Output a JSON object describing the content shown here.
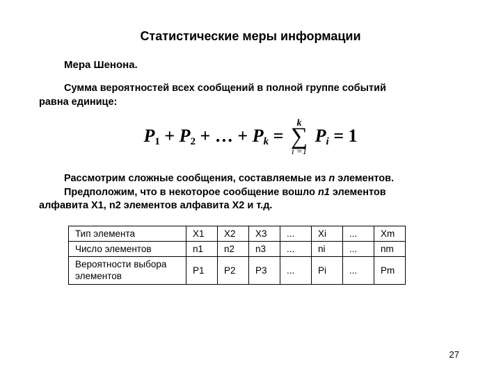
{
  "title": "Статистические меры информации",
  "subtitle": "Мера Шенона.",
  "para1_a": "Сумма вероятностей всех сообщений в полной группе событий",
  "para1_b": "равна единице:",
  "para2_a": "Рассмотрим сложные сообщения, составляемые из ",
  "para2_n": "n",
  "para2_b": " элементов.",
  "para3_a": "Предположим, что в некоторое сообщение вошло ",
  "para3_n1": "n1",
  "para3_b": " элементов",
  "para3_c": "алфавита Х1, n2 элементов алфавита Х2 и т.д.",
  "formula": {
    "P": "P",
    "sub1": "1",
    "plus": " + ",
    "sub2": "2",
    "dots": " + … + ",
    "subk": "k",
    "eq": "  =  ",
    "sum_top": "k",
    "sum_bot": "i =1",
    "subi": "i",
    "one": "1"
  },
  "table": {
    "rows": [
      {
        "label": "Тип элемента",
        "cells": [
          "X1",
          "X2",
          "X3",
          "...",
          "Xi",
          "...",
          "Xm"
        ]
      },
      {
        "label": "Число элементов",
        "cells": [
          "n1",
          "n2",
          "n3",
          "...",
          "ni",
          "...",
          "nm"
        ]
      },
      {
        "label": "Вероятности выбора\nэлементов",
        "cells": [
          "P1",
          "P2",
          "P3",
          "...",
          "Pi",
          "...",
          "Pm"
        ]
      }
    ]
  },
  "page_number": "27"
}
